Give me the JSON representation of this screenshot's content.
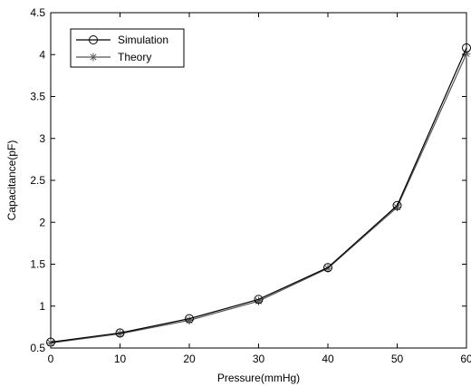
{
  "chart_data": {
    "type": "line",
    "xlabel": "Pressure(mmHg)",
    "ylabel": "Capacitance(pF)",
    "xlim": [
      0,
      60
    ],
    "ylim": [
      0.5,
      4.5
    ],
    "xticks": [
      "0",
      "10",
      "20",
      "30",
      "40",
      "50",
      "60"
    ],
    "yticks": [
      "0.5",
      "1",
      "1.5",
      "2",
      "2.5",
      "3",
      "3.5",
      "4",
      "4.5"
    ],
    "x": [
      0,
      10,
      20,
      30,
      40,
      50,
      60
    ],
    "grid": false,
    "legend_position": "top-left",
    "series": [
      {
        "name": "Simulation",
        "marker": "circle",
        "color": "#000000",
        "values": [
          0.57,
          0.68,
          0.85,
          1.08,
          1.46,
          2.2,
          4.08
        ]
      },
      {
        "name": "Theory",
        "marker": "asterisk",
        "color": "#555555",
        "values": [
          0.56,
          0.67,
          0.83,
          1.06,
          1.45,
          2.18,
          4.01
        ]
      }
    ]
  }
}
